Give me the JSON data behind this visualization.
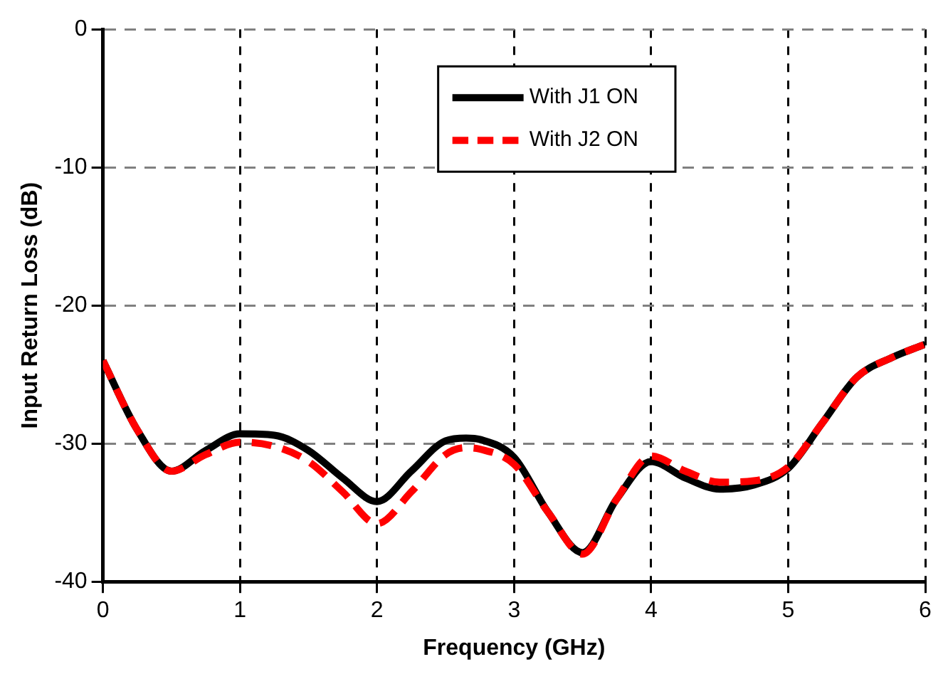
{
  "chart_data": {
    "type": "line",
    "xlabel": "Frequency (GHz)",
    "ylabel": "Input Return Loss (dB)",
    "x": [
      0,
      0.25,
      0.5,
      0.75,
      1,
      1.25,
      1.5,
      1.75,
      2,
      2.25,
      2.5,
      2.65,
      2.75,
      3,
      3.25,
      3.5,
      3.75,
      4,
      4.25,
      4.5,
      4.75,
      5,
      5.25,
      5.5,
      5.75,
      6
    ],
    "series": [
      {
        "name": "With J1 ON",
        "color": "#000000",
        "line_style": "solid",
        "values": [
          -24,
          -29,
          -32,
          -30.5,
          -29.3,
          -29.4,
          -30.5,
          -32.5,
          -34.2,
          -32,
          -29.8,
          -29.6,
          -29.7,
          -31,
          -35,
          -37.9,
          -34,
          -31.3,
          -32.5,
          -33.3,
          -33,
          -31.8,
          -28.5,
          -25.2,
          -23.8,
          -22.8
        ]
      },
      {
        "name": "With J2 ON",
        "color": "#ff0000",
        "line_style": "dashed",
        "values": [
          -24,
          -29,
          -32,
          -30.8,
          -29.9,
          -30.2,
          -31.3,
          -33.5,
          -35.8,
          -33.5,
          -30.8,
          -30.3,
          -30.4,
          -31.5,
          -35,
          -38,
          -34,
          -30.9,
          -32,
          -32.8,
          -32.7,
          -31.7,
          -28.5,
          -25.2,
          -23.8,
          -22.8
        ]
      }
    ],
    "xlim": [
      0,
      6
    ],
    "xticks": [
      0,
      1,
      2,
      3,
      4,
      5,
      6
    ],
    "ylim": [
      -40,
      0
    ],
    "yticks": [
      -40,
      -30,
      -20,
      -10,
      0
    ],
    "grid": true,
    "legend": "top",
    "marker": "none"
  }
}
